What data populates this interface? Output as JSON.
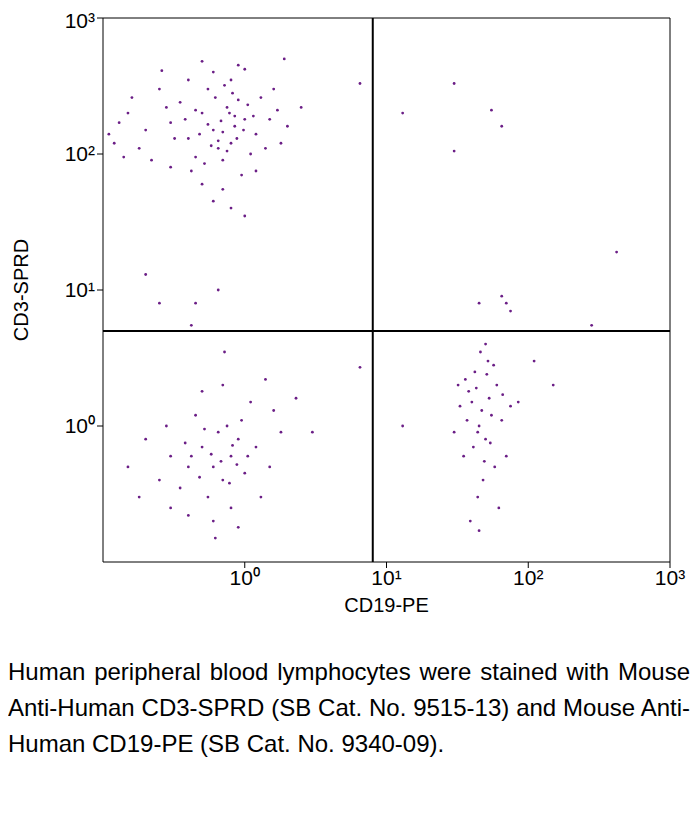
{
  "chart_data": {
    "type": "scatter",
    "xlabel": "CD19-PE",
    "ylabel": "CD3-SPRD",
    "caption": "Human peripheral blood lymphocytes were stained with Mouse Anti-Human CD3-SPRD (SB Cat. No. 9515-13) and Mouse Anti-Human CD19-PE (SB Cat. No. 9340-09).",
    "log": true,
    "grid": false,
    "color": "#6b1e86",
    "xlim": [
      0.1,
      1000
    ],
    "ylim": [
      0.1,
      1000
    ],
    "xticks": [
      {
        "value": 1,
        "label": "10⁰"
      },
      {
        "value": 10,
        "label": "10¹"
      },
      {
        "value": 100,
        "label": "10²"
      },
      {
        "value": 1000,
        "label": "10³"
      }
    ],
    "yticks": [
      {
        "value": 1,
        "label": "10⁰"
      },
      {
        "value": 10,
        "label": "10¹"
      },
      {
        "value": 100,
        "label": "10²"
      },
      {
        "value": 1000,
        "label": "10³"
      }
    ],
    "gates": {
      "x": 8,
      "y": 5
    },
    "x": [
      0.6,
      0.8,
      0.5,
      0.7,
      1.0,
      0.4,
      0.9,
      0.3,
      0.55,
      1.2,
      0.65,
      0.75,
      0.45,
      0.85,
      1.1,
      0.35,
      0.2,
      0.15,
      0.12,
      0.25,
      0.6,
      0.8,
      1.3,
      1.5,
      1.8,
      1.6,
      0.95,
      0.5,
      0.3,
      0.7,
      0.4,
      1.0,
      0.22,
      0.18,
      0.13,
      0.28,
      0.38,
      0.48,
      0.58,
      0.68,
      0.78,
      0.88,
      0.98,
      1.05,
      1.15,
      1.4,
      0.62,
      0.52,
      0.42,
      0.32,
      0.72,
      0.82,
      1.7,
      2.0,
      0.9,
      0.5,
      0.26,
      0.16,
      0.11,
      0.14,
      1.2,
      0.6,
      0.8,
      1.0,
      0.7,
      0.55,
      0.65,
      0.75,
      0.85,
      0.45,
      0.2,
      0.25,
      0.45,
      0.65,
      0.42,
      6.5,
      1.9,
      2.5,
      0.6,
      0.5,
      0.7,
      0.8,
      0.4,
      0.9,
      1.0,
      0.3,
      0.55,
      0.65,
      0.45,
      0.75,
      1.2,
      1.5,
      0.35,
      0.25,
      0.2,
      0.15,
      0.6,
      0.8,
      1.1,
      0.5,
      0.7,
      1.3,
      0.4,
      0.9,
      0.3,
      1.8,
      1.6,
      0.95,
      0.58,
      0.68,
      0.48,
      0.78,
      0.88,
      0.38,
      0.28,
      1.05,
      0.62,
      0.72,
      0.18,
      1.4,
      0.52,
      0.82,
      0.42,
      2.3,
      3,
      6.5,
      45,
      40,
      50,
      55,
      35,
      60,
      42,
      48,
      52,
      38,
      30,
      65,
      44,
      58,
      47,
      36,
      53,
      41,
      70,
      33,
      46,
      62,
      39,
      50,
      57,
      43,
      49,
      54,
      37,
      66,
      45,
      75,
      32,
      51,
      44,
      13,
      150,
      110,
      85,
      30,
      13,
      55,
      30,
      65,
      420,
      280,
      70,
      45,
      75,
      65
    ],
    "values": [
      150,
      120,
      200,
      90,
      180,
      130,
      250,
      170,
      300,
      140,
      110,
      220,
      95,
      160,
      100,
      240,
      150,
      200,
      120,
      300,
      400,
      350,
      260,
      180,
      120,
      300,
      70,
      60,
      80,
      55,
      350,
      420,
      90,
      110,
      170,
      220,
      180,
      140,
      115,
      175,
      200,
      130,
      150,
      230,
      190,
      110,
      260,
      85,
      75,
      130,
      320,
      280,
      210,
      160,
      450,
      480,
      410,
      260,
      140,
      95,
      75,
      45,
      40,
      35,
      145,
      165,
      125,
      105,
      190,
      210,
      13,
      8,
      8,
      10,
      5.5,
      330,
      500,
      220,
      0.5,
      0.7,
      0.4,
      0.6,
      0.5,
      0.8,
      0.45,
      0.6,
      0.3,
      0.9,
      1.2,
      1.0,
      0.7,
      0.5,
      0.35,
      0.4,
      0.8,
      0.5,
      0.2,
      0.25,
      1.5,
      1.8,
      2.0,
      0.3,
      0.22,
      0.18,
      0.25,
      0.9,
      1.3,
      1.1,
      0.62,
      0.55,
      0.42,
      0.38,
      0.52,
      0.75,
      1.0,
      0.6,
      0.15,
      3.5,
      0.3,
      2.2,
      0.95,
      0.72,
      0.6,
      1.6,
      0.9,
      2.7,
      1.0,
      1.5,
      0.8,
      1.2,
      0.6,
      2.0,
      2.5,
      0.4,
      3.0,
      1.8,
      0.9,
      1.1,
      0.3,
      0.5,
      1.3,
      2.2,
      1.6,
      0.7,
      0.6,
      1.4,
      3.5,
      0.25,
      0.2,
      4.0,
      2.8,
      1.9,
      0.55,
      0.75,
      1.1,
      1.7,
      0.17,
      1.4,
      2.0,
      2.4,
      0.9,
      1.0,
      2.0,
      3.0,
      1.5,
      330,
      200,
      210,
      105,
      160,
      19,
      5.5,
      8,
      8,
      7,
      9
    ]
  }
}
